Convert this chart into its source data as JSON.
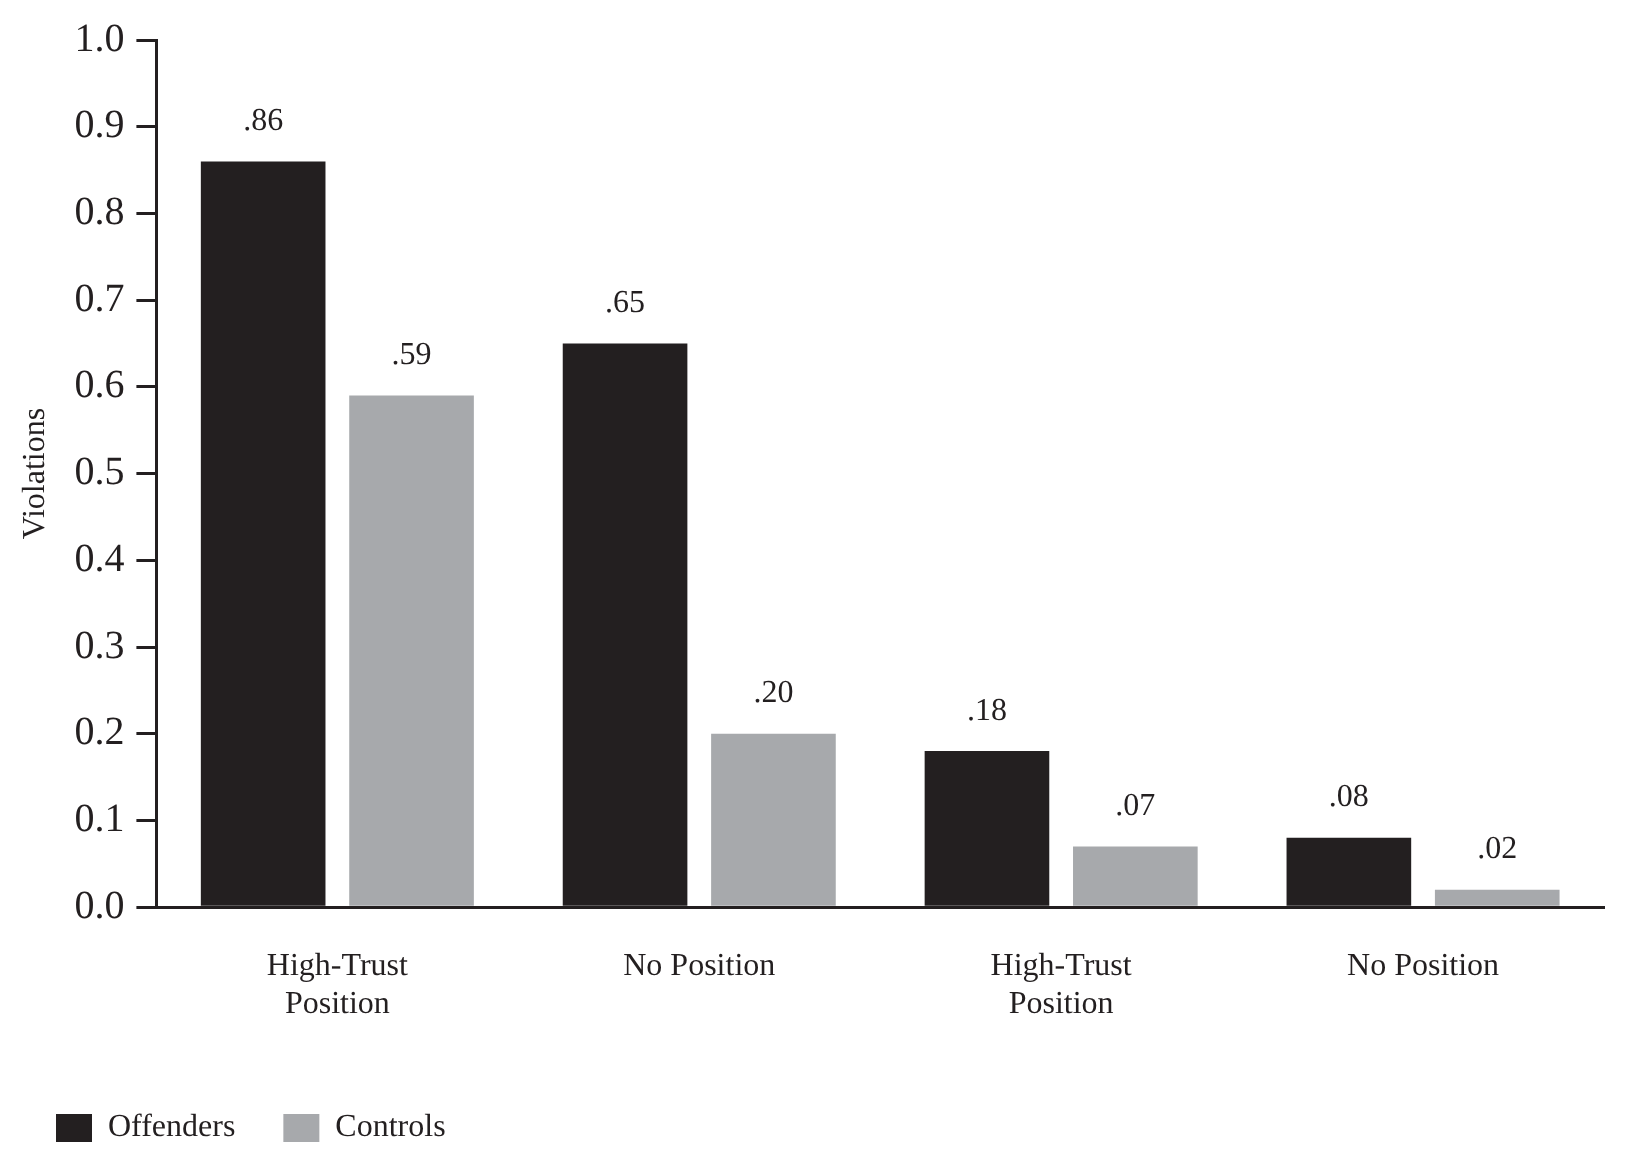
{
  "chart_data": {
    "type": "bar",
    "ylabel": "Violations",
    "categories": [
      "High-Trust Position",
      "No Position",
      "High-Trust Position",
      "No Position"
    ],
    "series": [
      {
        "name": "Offenders",
        "color": "#231f20",
        "values": [
          0.86,
          0.65,
          0.18,
          0.08
        ],
        "value_labels": [
          ".86",
          ".65",
          ".18",
          ".08"
        ]
      },
      {
        "name": "Controls",
        "color": "#a7a9ac",
        "values": [
          0.59,
          0.2,
          0.07,
          0.02
        ],
        "value_labels": [
          ".59",
          ".20",
          ".07",
          ".02"
        ]
      }
    ],
    "ylim": [
      0,
      1.0
    ],
    "yticks": [
      {
        "value": 0,
        "label": "0.0"
      },
      {
        "value": 0.1,
        "label": "0.1"
      },
      {
        "value": 0.2,
        "label": "0.2"
      },
      {
        "value": 0.3,
        "label": "0.3"
      },
      {
        "value": 0.4,
        "label": "0.4"
      },
      {
        "value": 0.5,
        "label": "0.5"
      },
      {
        "value": 0.6,
        "label": "0.6"
      },
      {
        "value": 0.7,
        "label": "0.7"
      },
      {
        "value": 0.8,
        "label": "0.8"
      },
      {
        "value": 0.9,
        "label": "0.9"
      },
      {
        "value": 1.0,
        "label": "1.0"
      }
    ],
    "legend": "bottom left"
  }
}
